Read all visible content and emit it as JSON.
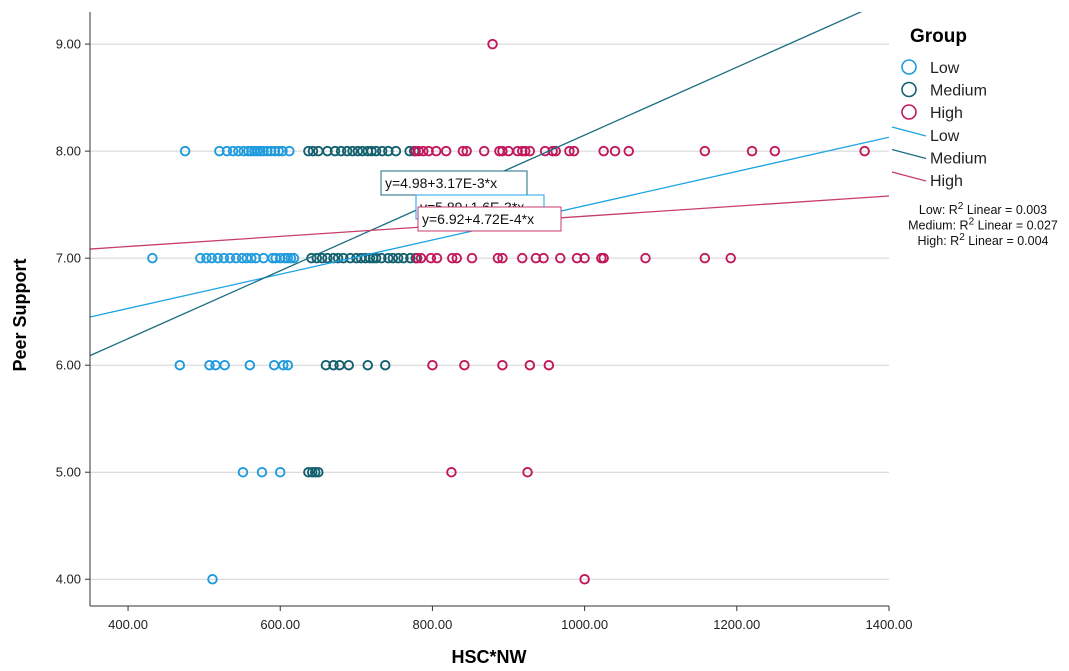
{
  "chart_data": {
    "type": "scatter",
    "xlabel": "HSC*NW",
    "ylabel": "Peer Support",
    "xlim": [
      350,
      1400
    ],
    "ylim": [
      3.75,
      9.3
    ],
    "x_ticks": [
      "400.00",
      "600.00",
      "800.00",
      "1000.00",
      "1200.00",
      "1400.00"
    ],
    "y_ticks": [
      "4.00",
      "5.00",
      "6.00",
      "7.00",
      "8.00",
      "9.00"
    ],
    "grid": "horizontal",
    "legend_title": "Group",
    "legend_position": "right",
    "series": [
      {
        "name": "Low",
        "color": "#1f9bde",
        "points": [
          [
            475,
            8
          ],
          [
            520,
            8
          ],
          [
            530,
            8
          ],
          [
            538,
            8
          ],
          [
            545,
            8
          ],
          [
            552,
            8
          ],
          [
            558,
            8
          ],
          [
            562,
            8
          ],
          [
            566,
            8
          ],
          [
            570,
            8
          ],
          [
            574,
            8
          ],
          [
            578,
            8
          ],
          [
            583,
            8
          ],
          [
            588,
            8
          ],
          [
            593,
            8
          ],
          [
            598,
            8
          ],
          [
            603,
            8
          ],
          [
            612,
            8
          ],
          [
            432,
            7
          ],
          [
            495,
            7
          ],
          [
            503,
            7
          ],
          [
            510,
            7
          ],
          [
            518,
            7
          ],
          [
            526,
            7
          ],
          [
            534,
            7
          ],
          [
            542,
            7
          ],
          [
            550,
            7
          ],
          [
            556,
            7
          ],
          [
            562,
            7
          ],
          [
            568,
            7
          ],
          [
            578,
            7
          ],
          [
            590,
            7
          ],
          [
            594,
            7
          ],
          [
            600,
            7
          ],
          [
            606,
            7
          ],
          [
            610,
            7
          ],
          [
            614,
            7
          ],
          [
            618,
            7
          ],
          [
            468,
            6
          ],
          [
            507,
            6
          ],
          [
            515,
            6
          ],
          [
            527,
            6
          ],
          [
            560,
            6
          ],
          [
            592,
            6
          ],
          [
            604,
            6
          ],
          [
            610,
            6
          ],
          [
            551,
            5
          ],
          [
            576,
            5
          ],
          [
            600,
            5
          ],
          [
            511,
            4
          ]
        ]
      },
      {
        "name": "Medium",
        "color": "#13606e",
        "points": [
          [
            637,
            8
          ],
          [
            643,
            8
          ],
          [
            650,
            8
          ],
          [
            662,
            8
          ],
          [
            672,
            8
          ],
          [
            680,
            8
          ],
          [
            688,
            8
          ],
          [
            695,
            8
          ],
          [
            702,
            8
          ],
          [
            708,
            8
          ],
          [
            715,
            8
          ],
          [
            720,
            8
          ],
          [
            726,
            8
          ],
          [
            734,
            8
          ],
          [
            742,
            8
          ],
          [
            752,
            8
          ],
          [
            770,
            8
          ],
          [
            776,
            8
          ],
          [
            641,
            7
          ],
          [
            648,
            7
          ],
          [
            655,
            7
          ],
          [
            662,
            7
          ],
          [
            670,
            7
          ],
          [
            676,
            7
          ],
          [
            683,
            7
          ],
          [
            692,
            7
          ],
          [
            700,
            7
          ],
          [
            706,
            7
          ],
          [
            712,
            7
          ],
          [
            718,
            7
          ],
          [
            722,
            7
          ],
          [
            726,
            7
          ],
          [
            733,
            7
          ],
          [
            742,
            7
          ],
          [
            748,
            7
          ],
          [
            755,
            7
          ],
          [
            762,
            7
          ],
          [
            771,
            7
          ],
          [
            778,
            7
          ],
          [
            660,
            6
          ],
          [
            670,
            6
          ],
          [
            678,
            6
          ],
          [
            690,
            6
          ],
          [
            715,
            6
          ],
          [
            738,
            6
          ],
          [
            637,
            5
          ],
          [
            642,
            5
          ],
          [
            646,
            5
          ],
          [
            650,
            5
          ]
        ]
      },
      {
        "name": "High",
        "color": "#c2185b",
        "points": [
          [
            778,
            8
          ],
          [
            782,
            8
          ],
          [
            788,
            8
          ],
          [
            795,
            8
          ],
          [
            805,
            8
          ],
          [
            818,
            8
          ],
          [
            840,
            8
          ],
          [
            845,
            8
          ],
          [
            868,
            8
          ],
          [
            888,
            8
          ],
          [
            892,
            8
          ],
          [
            900,
            8
          ],
          [
            912,
            8
          ],
          [
            918,
            8
          ],
          [
            922,
            8
          ],
          [
            928,
            8
          ],
          [
            948,
            8
          ],
          [
            958,
            8
          ],
          [
            962,
            8
          ],
          [
            980,
            8
          ],
          [
            986,
            8
          ],
          [
            1025,
            8
          ],
          [
            1040,
            8
          ],
          [
            1058,
            8
          ],
          [
            1158,
            8
          ],
          [
            1220,
            8
          ],
          [
            1250,
            8
          ],
          [
            1368,
            8
          ],
          [
            780,
            7
          ],
          [
            785,
            7
          ],
          [
            798,
            7
          ],
          [
            806,
            7
          ],
          [
            826,
            7
          ],
          [
            832,
            7
          ],
          [
            852,
            7
          ],
          [
            886,
            7
          ],
          [
            892,
            7
          ],
          [
            918,
            7
          ],
          [
            936,
            7
          ],
          [
            946,
            7
          ],
          [
            968,
            7
          ],
          [
            990,
            7
          ],
          [
            1000,
            7
          ],
          [
            1022,
            7
          ],
          [
            1025,
            7
          ],
          [
            1080,
            7
          ],
          [
            1158,
            7
          ],
          [
            1192,
            7
          ],
          [
            800,
            6
          ],
          [
            842,
            6
          ],
          [
            892,
            6
          ],
          [
            928,
            6
          ],
          [
            953,
            6
          ],
          [
            825,
            5
          ],
          [
            925,
            5
          ],
          [
            879,
            9
          ],
          [
            1000,
            4
          ]
        ]
      }
    ],
    "fit_lines": [
      {
        "name": "Low",
        "color": "#1aa4e4",
        "intercept": 5.89,
        "slope": 0.0016
      },
      {
        "name": "Medium",
        "color": "#1d6e82",
        "intercept": 4.98,
        "slope": 0.00317
      },
      {
        "name": "High",
        "color": "#c73e6b",
        "intercept": 6.92,
        "slope": 0.000472
      }
    ],
    "equation_labels": [
      {
        "series": "Medium",
        "text": "y=4.98+3.17E-3*x",
        "color": "#1d6e82"
      },
      {
        "series": "Low",
        "text": "y=5.89+1.6E-3*x",
        "color": "#1aa4e4"
      },
      {
        "series": "High",
        "text": "y=6.92+4.72E-4*x",
        "color": "#c73e6b"
      }
    ],
    "r2_labels": [
      {
        "prefix": "Low: R",
        "sup": "2",
        "suffix": " Linear = 0.003"
      },
      {
        "prefix": "Medium: R",
        "sup": "2",
        "suffix": " Linear = 0.027"
      },
      {
        "prefix": "High: R",
        "sup": "2",
        "suffix": " Linear = 0.004"
      }
    ]
  }
}
